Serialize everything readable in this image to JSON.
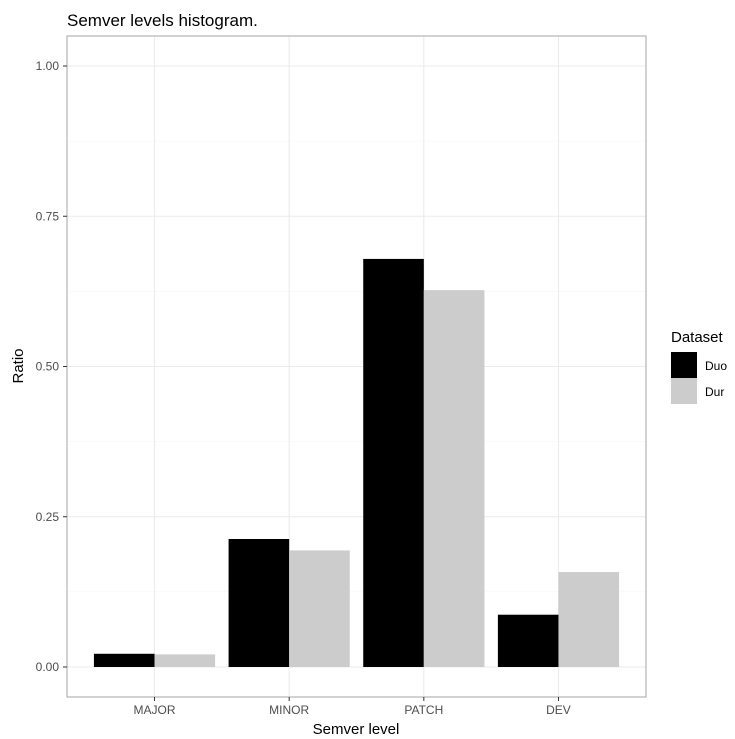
{
  "chart_data": {
    "type": "bar",
    "title": "Semver levels histogram.",
    "xlabel": "Semver level",
    "ylabel": "Ratio",
    "categories": [
      "MAJOR",
      "MINOR",
      "PATCH",
      "DEV"
    ],
    "series": [
      {
        "name": "Duo",
        "color": "#000000",
        "values": [
          0.022,
          0.213,
          0.679,
          0.087
        ]
      },
      {
        "name": "Dur",
        "color": "#cccccc",
        "values": [
          0.021,
          0.194,
          0.627,
          0.158
        ]
      }
    ],
    "ylim": [
      0,
      1
    ],
    "yticks": [
      "0.00",
      "0.25",
      "0.50",
      "0.75",
      "1.00"
    ],
    "grid": true,
    "legend": {
      "title": "Dataset",
      "position": "right"
    }
  }
}
